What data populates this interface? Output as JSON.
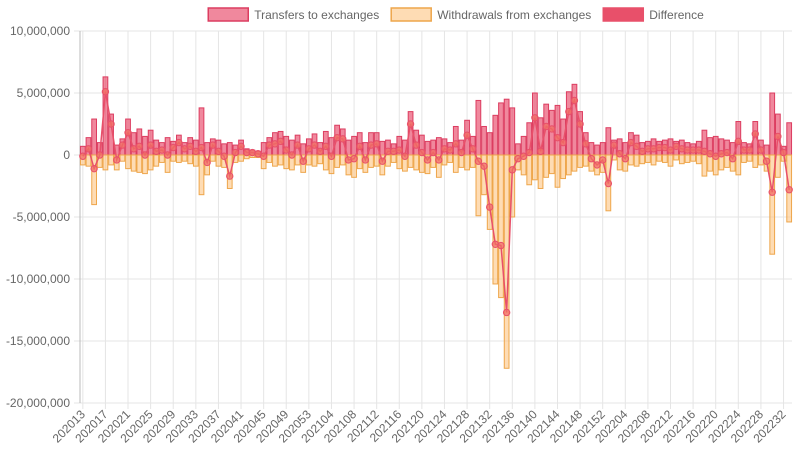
{
  "chart_data": {
    "type": "bar-line",
    "categories": [
      "202013",
      null,
      null,
      null,
      "202017",
      null,
      null,
      null,
      "202021",
      null,
      null,
      null,
      "202025",
      null,
      null,
      null,
      "202029",
      null,
      null,
      null,
      "202033",
      null,
      null,
      null,
      "202037",
      null,
      null,
      null,
      "202041",
      null,
      null,
      null,
      "202045",
      null,
      null,
      null,
      "202049",
      null,
      null,
      null,
      "202053",
      null,
      null,
      null,
      "202104",
      null,
      null,
      null,
      "202108",
      null,
      null,
      null,
      "202112",
      null,
      null,
      null,
      "202116",
      null,
      null,
      null,
      "202120",
      null,
      null,
      null,
      "202124",
      null,
      null,
      null,
      "202128",
      null,
      null,
      null,
      "202132",
      null,
      null,
      null,
      "202136",
      null,
      null,
      null,
      "202140",
      null,
      null,
      null,
      "202144",
      null,
      null,
      null,
      "202148",
      null,
      null,
      null,
      "202152",
      null,
      null,
      null,
      "202204",
      null,
      null,
      null,
      "202208",
      null,
      null,
      null,
      "202212",
      null,
      null,
      null,
      "202216",
      null,
      null,
      null,
      "202220",
      null,
      null,
      null,
      "202224",
      null,
      null,
      null,
      "202228",
      null,
      null,
      null,
      "202232",
      null
    ],
    "series": [
      {
        "name": "Transfers to exchanges",
        "kind": "bar",
        "color": "rgba(232,72,104,0.65)",
        "border": "#dc3d60",
        "values": [
          700000,
          1400000,
          2900000,
          1000000,
          6300000,
          3300000,
          800000,
          1300000,
          2900000,
          1800000,
          2100000,
          1500000,
          2000000,
          1200000,
          1000000,
          1400000,
          1100000,
          1600000,
          1000000,
          1400000,
          1200000,
          3800000,
          1000000,
          1300000,
          1200000,
          900000,
          1000000,
          800000,
          1200000,
          500000,
          400000,
          300000,
          1000000,
          1400000,
          1800000,
          1900000,
          1500000,
          1200000,
          1600000,
          900000,
          1300000,
          1700000,
          1000000,
          1900000,
          1400000,
          2400000,
          2100000,
          1200000,
          1500000,
          1800000,
          1000000,
          1800000,
          1800000,
          1100000,
          1200000,
          900000,
          1500000,
          1200000,
          3500000,
          2000000,
          1600000,
          1100000,
          1200000,
          1400000,
          1300000,
          1000000,
          2300000,
          1200000,
          2800000,
          1500000,
          4400000,
          2300000,
          1800000,
          3200000,
          4200000,
          4500000,
          3800000,
          900000,
          1500000,
          2600000,
          5000000,
          3000000,
          4100000,
          3600000,
          4000000,
          2900000,
          5100000,
          5700000,
          3500000,
          1800000,
          1000000,
          800000,
          1000000,
          2200000,
          1200000,
          1300000,
          1000000,
          1800000,
          1600000,
          1000000,
          1100000,
          1300000,
          1100000,
          1200000,
          1300000,
          1100000,
          1200000,
          1000000,
          900000,
          1100000,
          2000000,
          1400000,
          1500000,
          1300000,
          1200000,
          1000000,
          2700000,
          1000000,
          900000,
          2700000,
          1200000,
          800000,
          5000000,
          3300000,
          700000,
          2600000
        ]
      },
      {
        "name": "Withdrawals from exchanges",
        "kind": "bar",
        "color": "rgba(253,196,130,0.6)",
        "border": "#eea64b",
        "values": [
          -800000,
          -900000,
          -4000000,
          -1000000,
          -1200000,
          -800000,
          -1200000,
          -500000,
          -1100000,
          -1300000,
          -1400000,
          -1500000,
          -1200000,
          -900000,
          -600000,
          -1400000,
          -500000,
          -600000,
          -500000,
          -700000,
          -900000,
          -3200000,
          -1600000,
          -500000,
          -900000,
          -1000000,
          -2700000,
          -600000,
          -500000,
          -300000,
          -200000,
          -200000,
          -1100000,
          -600000,
          -900000,
          -800000,
          -1100000,
          -1200000,
          -800000,
          -1400000,
          -800000,
          -900000,
          -700000,
          -1200000,
          -1500000,
          -1000000,
          -800000,
          -1600000,
          -1800000,
          -1100000,
          -1400000,
          -1000000,
          -900000,
          -1600000,
          -900000,
          -600000,
          -1100000,
          -1300000,
          -1000000,
          -1200000,
          -1400000,
          -1500000,
          -1000000,
          -1800000,
          -800000,
          -600000,
          -1400000,
          -1000000,
          -1200000,
          -1000000,
          -4900000,
          -3200000,
          -6000000,
          -10400000,
          -11500000,
          -17200000,
          -5000000,
          -1200000,
          -1600000,
          -2400000,
          -2000000,
          -2700000,
          -1800000,
          -1500000,
          -2600000,
          -1900000,
          -1600000,
          -1300000,
          -1000000,
          -900000,
          -1300000,
          -1600000,
          -1400000,
          -4500000,
          -400000,
          -1200000,
          -1300000,
          -800000,
          -900000,
          -700000,
          -600000,
          -800000,
          -500000,
          -600000,
          -900000,
          -400000,
          -700000,
          -600000,
          -500000,
          -700000,
          -1700000,
          -1300000,
          -1600000,
          -1200000,
          -1000000,
          -1300000,
          -1600000,
          -600000,
          -500000,
          -1000000,
          -800000,
          -1300000,
          -8000000,
          -1800000,
          -500000,
          -5400000
        ]
      },
      {
        "name": "Difference",
        "kind": "line",
        "color": "#e8506a",
        "point_color": "rgba(240,110,100,0.75)",
        "values": [
          -100000,
          500000,
          -1100000,
          0,
          5100000,
          2500000,
          -400000,
          800000,
          1800000,
          500000,
          700000,
          0,
          800000,
          300000,
          400000,
          0,
          600000,
          1000000,
          500000,
          700000,
          300000,
          600000,
          -600000,
          800000,
          300000,
          -100000,
          -1700000,
          200000,
          700000,
          200000,
          200000,
          100000,
          -100000,
          800000,
          900000,
          1100000,
          400000,
          0,
          800000,
          -500000,
          500000,
          800000,
          300000,
          700000,
          -100000,
          1400000,
          1300000,
          -400000,
          -300000,
          700000,
          -400000,
          800000,
          900000,
          -500000,
          300000,
          300000,
          400000,
          -100000,
          2500000,
          800000,
          200000,
          -400000,
          200000,
          -400000,
          500000,
          400000,
          900000,
          200000,
          1600000,
          500000,
          -500000,
          -900000,
          -4200000,
          -7200000,
          -7300000,
          -12700000,
          -1200000,
          -300000,
          -100000,
          200000,
          3000000,
          300000,
          2300000,
          2100000,
          1400000,
          1000000,
          3500000,
          4400000,
          2500000,
          900000,
          -300000,
          -800000,
          -400000,
          -2300000,
          800000,
          100000,
          -300000,
          1000000,
          700000,
          300000,
          500000,
          500000,
          600000,
          600000,
          400000,
          700000,
          500000,
          400000,
          400000,
          400000,
          300000,
          100000,
          -100000,
          100000,
          200000,
          -300000,
          1100000,
          400000,
          400000,
          1700000,
          400000,
          -500000,
          -3000000,
          1500000,
          200000,
          -2800000
        ]
      }
    ],
    "ylim": [
      -20000000,
      10000000
    ],
    "yticks": [
      {
        "value": -20000000,
        "label": "-20,000,000"
      },
      {
        "value": -15000000,
        "label": "-15,000,000"
      },
      {
        "value": -10000000,
        "label": "-10,000,000"
      },
      {
        "value": -5000000,
        "label": "-5,000,000"
      },
      0,
      {
        "value": 5000000,
        "label": "5,000,000"
      },
      {
        "value": 10000000,
        "label": "10,000,000"
      }
    ],
    "grid": true,
    "legend": "top"
  }
}
